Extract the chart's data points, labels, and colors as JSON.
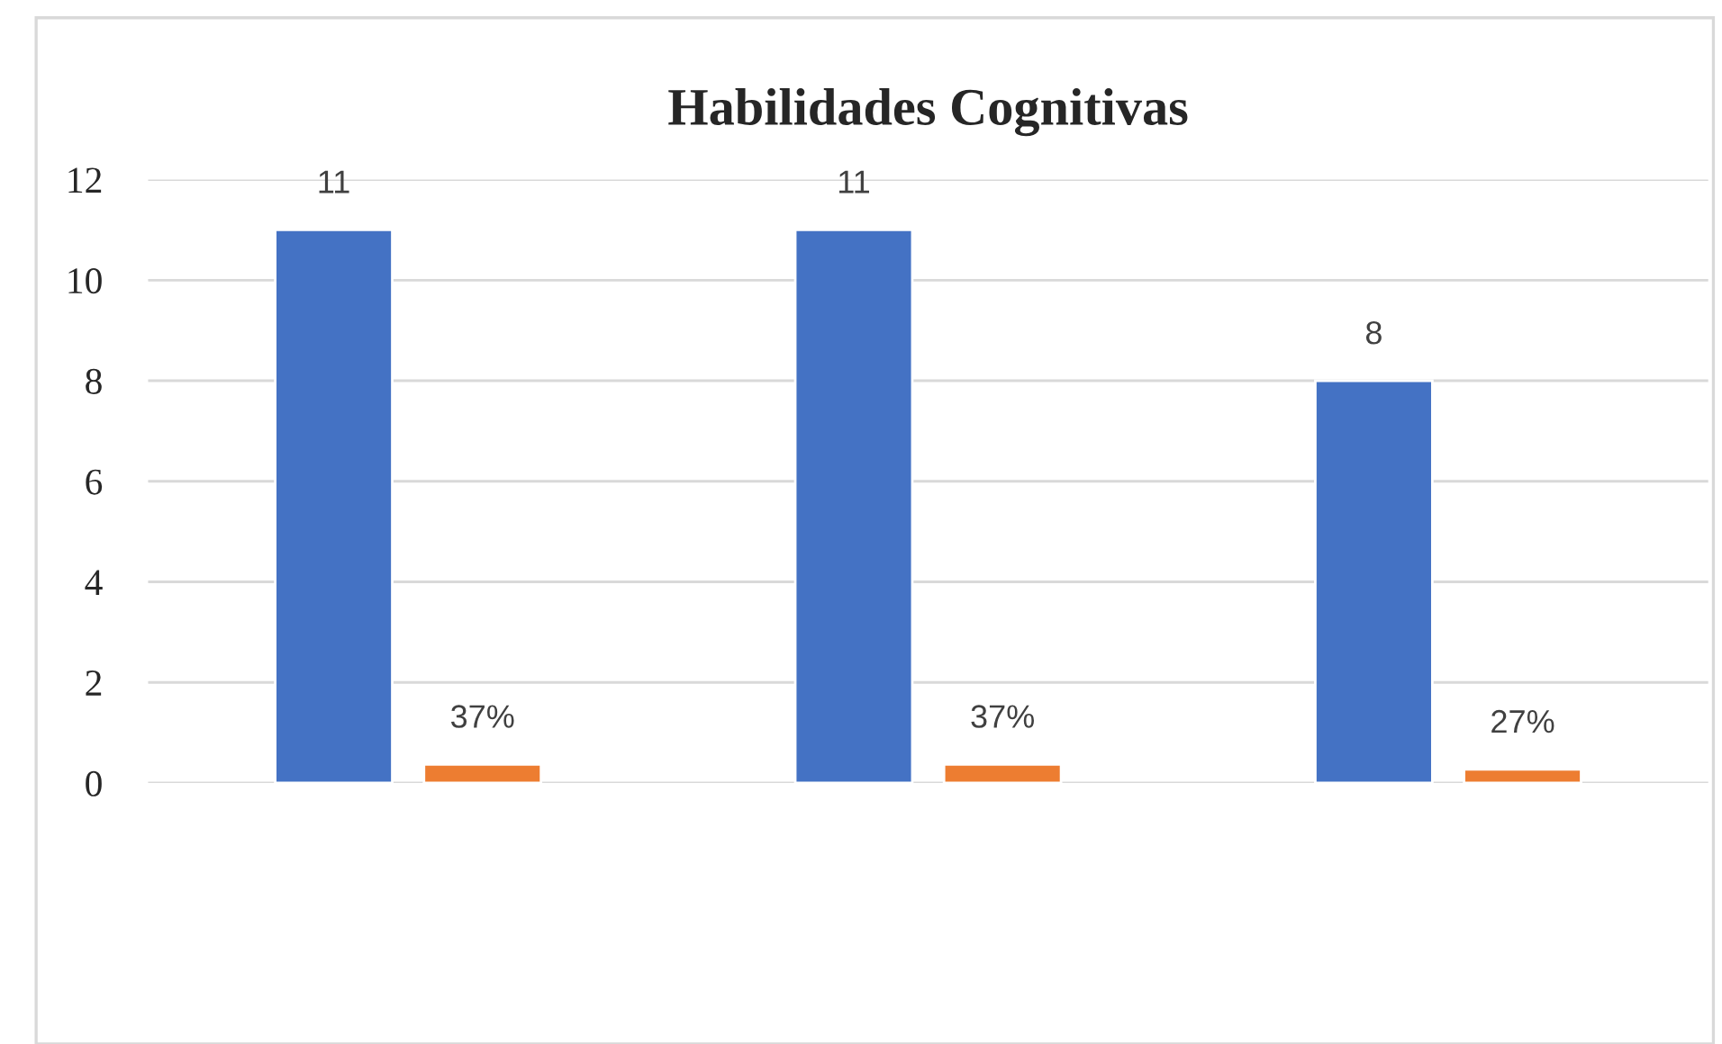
{
  "chart_data": {
    "type": "bar",
    "title": "Habilidades Cognitivas",
    "categories": [
      null,
      null,
      null
    ],
    "series": [
      {
        "color": "#4472c4",
        "values": [
          11,
          11,
          8
        ],
        "value_labels": [
          "11",
          "11",
          "8"
        ]
      },
      {
        "color": "#ed7d31",
        "values": [
          0.37,
          0.37,
          0.27
        ],
        "value_labels": [
          "37%",
          "37%",
          "27%"
        ]
      }
    ],
    "ylim": [
      0,
      12
    ],
    "yticks": [
      0,
      2,
      4,
      6,
      8,
      10,
      12
    ],
    "grid": "y"
  }
}
